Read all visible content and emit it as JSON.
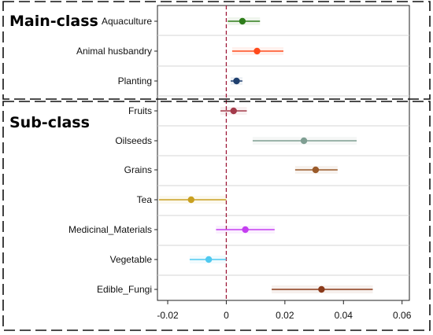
{
  "chart_data": {
    "type": "scatter",
    "title": "",
    "xlabel": "",
    "ylabel": "",
    "xlim": [
      -0.0235,
      0.0625
    ],
    "xticks": [
      -0.02,
      0,
      0.02,
      0.04,
      0.06
    ],
    "xtick_labels": [
      "-0.02",
      "0",
      "0.02",
      "0.04",
      "0.06"
    ],
    "reference_line": 0,
    "grid": "horizontal",
    "groups": [
      {
        "label": "Main-class",
        "items": [
          {
            "category": "Aquaculture",
            "estimate": 0.0055,
            "ci_low": 0.0005,
            "ci_high": 0.0115,
            "color": "#2e7d1a"
          },
          {
            "category": "Animal husbandry",
            "estimate": 0.0105,
            "ci_low": 0.002,
            "ci_high": 0.0195,
            "color": "#ff4a1c"
          },
          {
            "category": "Planting",
            "estimate": 0.0035,
            "ci_low": 0.0015,
            "ci_high": 0.0055,
            "color": "#1f3f6e"
          }
        ]
      },
      {
        "label": "Sub-class",
        "items": [
          {
            "category": "Fruits",
            "estimate": 0.0025,
            "ci_low": -0.002,
            "ci_high": 0.007,
            "color": "#a33a4a"
          },
          {
            "category": "Oilseeds",
            "estimate": 0.0265,
            "ci_low": 0.009,
            "ci_high": 0.0445,
            "color": "#7f9e92"
          },
          {
            "category": "Grains",
            "estimate": 0.0305,
            "ci_low": 0.0235,
            "ci_high": 0.038,
            "color": "#9a5a2a"
          },
          {
            "category": "Tea",
            "estimate": -0.012,
            "ci_low": -0.023,
            "ci_high": 0.0,
            "color": "#c9a020"
          },
          {
            "category": "Medicinal_Materials",
            "estimate": 0.0065,
            "ci_low": -0.0035,
            "ci_high": 0.0165,
            "color": "#c43ef0"
          },
          {
            "category": "Vegetable",
            "estimate": -0.006,
            "ci_low": -0.0125,
            "ci_high": 0.0,
            "color": "#4fc9f0"
          },
          {
            "category": "Edible_Fungi",
            "estimate": 0.0325,
            "ci_low": 0.0155,
            "ci_high": 0.05,
            "color": "#8a3a1a"
          }
        ]
      }
    ]
  }
}
